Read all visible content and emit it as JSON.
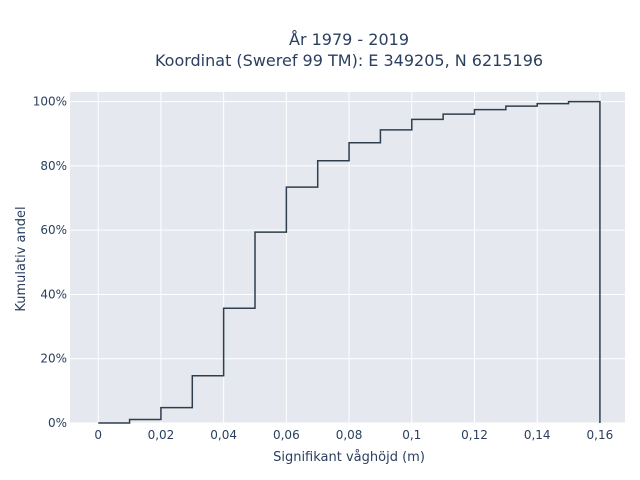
{
  "chart_data": {
    "type": "line",
    "subtype": "cumulative-step",
    "title_line1": "År 1979 - 2019",
    "title_line2": "Koordinat (Sweref 99 TM): E 349205, N 6215196",
    "xlabel": "Signifikant våghöjd (m)",
    "ylabel": "Kumulativ andel",
    "xlim": [
      -0.009,
      0.168
    ],
    "ylim": [
      0,
      1.03
    ],
    "x_ticks": [
      0,
      0.02,
      0.04,
      0.06,
      0.08,
      0.1,
      0.12,
      0.14,
      0.16
    ],
    "x_tick_labels": [
      "0",
      "0,02",
      "0,04",
      "0,06",
      "0,08",
      "0,1",
      "0,12",
      "0,14",
      "0,16"
    ],
    "y_ticks": [
      0,
      0.2,
      0.4,
      0.6,
      0.8,
      1.0
    ],
    "y_tick_labels": [
      "0%",
      "20%",
      "40%",
      "60%",
      "80%",
      "100%"
    ],
    "grid": true,
    "bin_edges": [
      0,
      0.01,
      0.02,
      0.03,
      0.04,
      0.05,
      0.06,
      0.07,
      0.08,
      0.09,
      0.1,
      0.11,
      0.12,
      0.13,
      0.14,
      0.15,
      0.16
    ],
    "values": [
      0.0,
      0.011,
      0.048,
      0.147,
      0.357,
      0.594,
      0.734,
      0.816,
      0.872,
      0.912,
      0.945,
      0.961,
      0.975,
      0.986,
      0.994,
      1.0
    ],
    "colors": {
      "line": "#2f3e4f",
      "plot_bg": "#e5e8ee",
      "text": "#2a3f5f"
    }
  }
}
